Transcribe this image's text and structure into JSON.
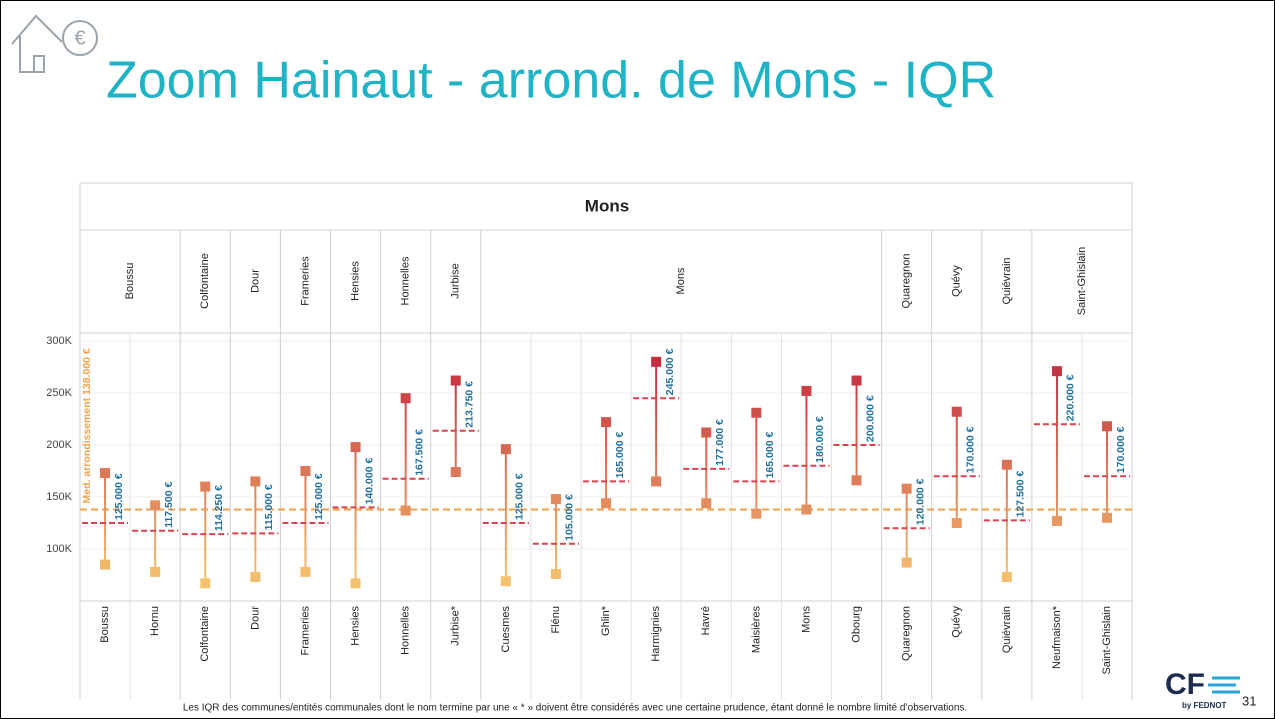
{
  "header": {
    "title": "Zoom Hainaut - arrond. de Mons - IQR"
  },
  "chart_data": {
    "type": "range",
    "panel_title": "Mons",
    "groups": [
      {
        "label": "Boussu",
        "categories": [
          "Boussu",
          "Hornu"
        ]
      },
      {
        "label": "Colfontaine",
        "categories": [
          "Colfontaine"
        ]
      },
      {
        "label": "Dour",
        "categories": [
          "Dour"
        ]
      },
      {
        "label": "Frameries",
        "categories": [
          "Frameries"
        ]
      },
      {
        "label": "Hensies",
        "categories": [
          "Hensies"
        ]
      },
      {
        "label": "Honnelles",
        "categories": [
          "Honnelles"
        ]
      },
      {
        "label": "Jurbise",
        "categories": [
          "Jurbise*"
        ]
      },
      {
        "label": "Mons",
        "categories": [
          "Cuesmes",
          "Flénu",
          "Ghlin*",
          "Harmignies",
          "Havré",
          "Maisières",
          "Mons",
          "Obourg"
        ]
      },
      {
        "label": "Quaregnon",
        "categories": [
          "Quaregnon"
        ]
      },
      {
        "label": "Quévy",
        "categories": [
          "Quévy"
        ]
      },
      {
        "label": "Quiévrain",
        "categories": [
          "Quiévrain"
        ]
      },
      {
        "label": "Saint-Ghislain",
        "categories": [
          "Neufmaison*",
          "Saint-Ghislain"
        ]
      }
    ],
    "low": [
      85000,
      78000,
      67000,
      73000,
      78000,
      67000,
      137000,
      174000,
      69000,
      76000,
      144000,
      165000,
      144000,
      134000,
      138000,
      166000,
      87000,
      125000,
      73000,
      127000,
      130000
    ],
    "high": [
      173000,
      142000,
      160000,
      165000,
      175000,
      198000,
      245000,
      262000,
      196000,
      148000,
      222000,
      280000,
      212000,
      231000,
      252000,
      262000,
      158000,
      232000,
      181000,
      271000,
      218000
    ],
    "median": {
      "values": [
        125000,
        117500,
        114250,
        115000,
        125000,
        140000,
        167500,
        213750,
        125000,
        105000,
        165000,
        245000,
        177000,
        165000,
        180000,
        200000,
        120000,
        170000,
        127500,
        220000,
        170000
      ],
      "value_labels": [
        "125.000 €",
        "117.500 €",
        "114.250 €",
        "115.000 €",
        "125.000 €",
        "140.000 €",
        "167.500 €",
        "213.750 €",
        "125.000 €",
        "105.000 €",
        "165.000 €",
        "245.000 €",
        "177.000 €",
        "165.000 €",
        "180.000 €",
        "200.000 €",
        "120.000 €",
        "170.000 €",
        "127.500 €",
        "220.000 €",
        "170.000 €"
      ],
      "color": "#d9434f",
      "label_color": "#1f6f9e"
    },
    "reference": {
      "value": 138000,
      "label": "Med. arrondissement 138.000 €",
      "color": "#f0a04b"
    },
    "color_scale": [
      "#f9cf72",
      "#bf1e3c"
    ],
    "ylim": [
      50000,
      300000
    ],
    "yticks": [
      {
        "value": 100000,
        "label": "100K"
      },
      {
        "value": 150000,
        "label": "150K"
      },
      {
        "value": 200000,
        "label": "200K"
      },
      {
        "value": 250000,
        "label": "250K"
      },
      {
        "value": 300000,
        "label": "300K"
      }
    ],
    "grid": true
  },
  "footer": {
    "note": "Les IQR des communes/entités communales dont le nom termine par une « * » doivent être considérés avec une certaine prudence, étant donné le nombre limité d’observations.",
    "page": "31",
    "logo": "CF",
    "logo_sub": "by FEDNOT"
  }
}
